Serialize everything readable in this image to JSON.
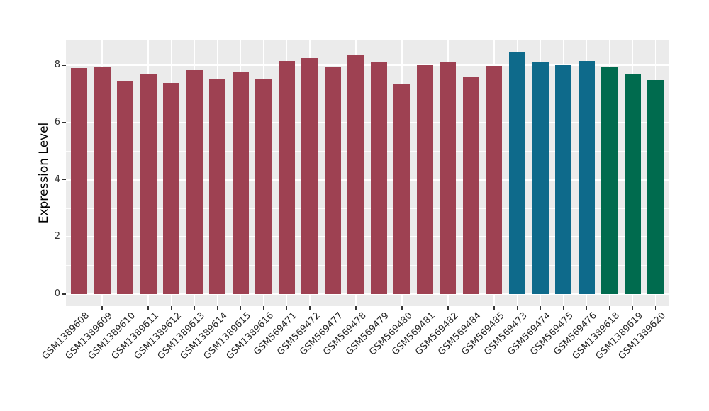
{
  "chart_data": {
    "type": "bar",
    "title": "",
    "xlabel": "",
    "ylabel": "Expression Level",
    "ylim": [
      0,
      8.88
    ],
    "yticks": [
      0,
      2,
      4,
      6,
      8
    ],
    "yticks_minor": [
      1,
      3,
      5,
      7
    ],
    "grid": "white major gridlines at y ticks and at each bar center, white minor gridlines at odd y values, on light gray panel",
    "legend": "none",
    "panel_background": "#EBEBEB",
    "gridline_color": "#FFFFFF",
    "axis_text_color": "#262626",
    "x_tick_label_rotation_deg": 45,
    "categories": [
      "GSM1389608",
      "GSM1389609",
      "GSM1389610",
      "GSM1389611",
      "GSM1389612",
      "GSM1389613",
      "GSM1389614",
      "GSM1389615",
      "GSM1389616",
      "GSM569471",
      "GSM569472",
      "GSM569477",
      "GSM569478",
      "GSM569479",
      "GSM569480",
      "GSM569481",
      "GSM569482",
      "GSM569484",
      "GSM569485",
      "GSM569473",
      "GSM569474",
      "GSM569475",
      "GSM569476",
      "GSM1389618",
      "GSM1389619",
      "GSM1389620"
    ],
    "values": [
      7.91,
      7.93,
      7.46,
      7.71,
      7.4,
      7.84,
      7.53,
      7.79,
      7.54,
      8.16,
      8.26,
      7.95,
      8.37,
      8.13,
      7.36,
      8.02,
      8.11,
      7.58,
      7.98,
      8.46,
      8.13,
      8.01,
      8.16,
      7.96,
      7.69,
      7.48
    ],
    "bar_colors": [
      "#9E4152",
      "#9E4152",
      "#9E4152",
      "#9E4152",
      "#9E4152",
      "#9E4152",
      "#9E4152",
      "#9E4152",
      "#9E4152",
      "#9E4152",
      "#9E4152",
      "#9E4152",
      "#9E4152",
      "#9E4152",
      "#9E4152",
      "#9E4152",
      "#9E4152",
      "#9E4152",
      "#9E4152",
      "#0E6A8B",
      "#0E6A8B",
      "#0E6A8B",
      "#0E6A8B",
      "#006B4E",
      "#006B4E",
      "#006B4E"
    ],
    "color_groups": [
      {
        "color": "#9E4152",
        "count": 19
      },
      {
        "color": "#0E6A8B",
        "count": 4
      },
      {
        "color": "#006B4E",
        "count": 3
      }
    ]
  }
}
